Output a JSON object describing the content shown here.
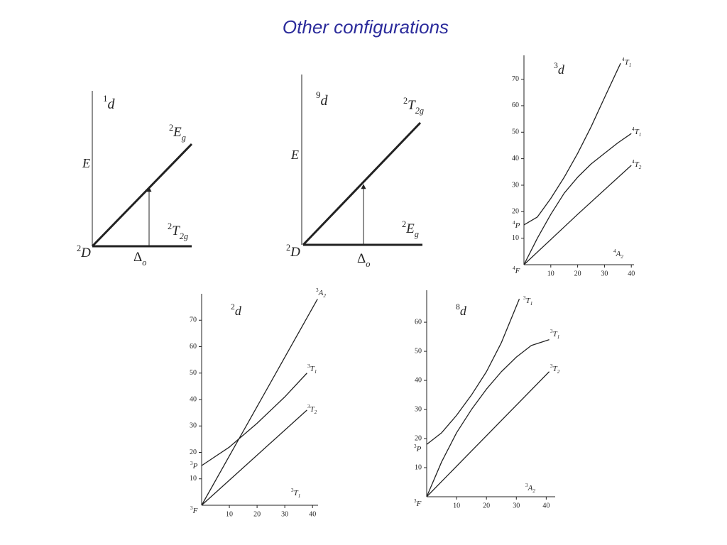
{
  "title": "Other configurations",
  "panels": [
    {
      "name": {
        "main": "d",
        "sup": "1"
      },
      "axis_label": {
        "main": "E"
      },
      "labels": [
        {
          "sup": "2",
          "main": "E",
          "sub": "g"
        },
        {
          "sup": "2",
          "main": "T",
          "sub": "2g"
        },
        {
          "sup": "2",
          "main": "D"
        },
        {
          "main": "Δ",
          "sub": "o"
        }
      ]
    },
    {
      "name": {
        "main": "d",
        "sup": "9"
      },
      "axis_label": {
        "main": "E"
      },
      "labels": [
        {
          "sup": "2",
          "main": "T",
          "sub": "2g"
        },
        {
          "sup": "2",
          "main": "E",
          "sub": "g"
        },
        {
          "sup": "2",
          "main": "D"
        },
        {
          "main": "Δ",
          "sub": "o"
        }
      ]
    }
  ],
  "plots": [
    {
      "name": {
        "main": "d",
        "sup": "3"
      },
      "xlim": [
        0,
        41
      ],
      "ylim": [
        0,
        79
      ],
      "xticks": [
        10,
        20,
        30,
        40
      ],
      "yticks": [
        10,
        20,
        30,
        40,
        50,
        60,
        70
      ],
      "curves": [
        {
          "x": [
            0,
            5,
            10,
            15,
            20,
            25,
            30,
            36
          ],
          "y": [
            15,
            18,
            25,
            33,
            42,
            52,
            63,
            76
          ]
        },
        {
          "x": [
            0,
            5,
            10,
            15,
            20,
            25,
            30,
            35,
            40
          ],
          "y": [
            0,
            10,
            19,
            27,
            33,
            38,
            42,
            46,
            49.5
          ]
        },
        {
          "x": [
            0,
            20,
            40
          ],
          "y": [
            0,
            19,
            37.5
          ]
        }
      ],
      "labels": [
        {
          "sup": "4",
          "main": "T",
          "sub": "1"
        },
        {
          "sup": "4",
          "main": "T",
          "sub": "1"
        },
        {
          "sup": "4",
          "main": "T",
          "sub": "2"
        },
        {
          "sup": "4",
          "main": "P"
        },
        {
          "sup": "4",
          "main": "F"
        },
        {
          "sup": "4",
          "main": "A",
          "sub": "2"
        }
      ]
    },
    {
      "name": {
        "main": "d",
        "sup": "2"
      },
      "xlim": [
        0,
        42
      ],
      "ylim": [
        0,
        80
      ],
      "xticks": [
        10,
        20,
        30,
        40
      ],
      "yticks": [
        10,
        20,
        30,
        40,
        50,
        60,
        70
      ],
      "curves": [
        {
          "x": [
            0,
            41.8
          ],
          "y": [
            0,
            78
          ]
        },
        {
          "x": [
            0,
            10,
            20,
            30,
            38
          ],
          "y": [
            15,
            22,
            31,
            41,
            50
          ]
        },
        {
          "x": [
            0,
            38
          ],
          "y": [
            0,
            36
          ]
        }
      ],
      "labels": [
        {
          "sup": "3",
          "main": "A",
          "sub": "2"
        },
        {
          "sup": "3",
          "main": "T",
          "sub": "1"
        },
        {
          "sup": "3",
          "main": "T",
          "sub": "2"
        },
        {
          "sup": "3",
          "main": "P"
        },
        {
          "sup": "3",
          "main": "F"
        },
        {
          "sup": "3",
          "main": "T",
          "sub": "1"
        }
      ]
    },
    {
      "name": {
        "main": "d",
        "sup": "8"
      },
      "xlim": [
        0,
        43
      ],
      "ylim": [
        0,
        71
      ],
      "xticks": [
        10,
        20,
        30,
        40
      ],
      "yticks": [
        10,
        20,
        30,
        40,
        50,
        60
      ],
      "curves": [
        {
          "x": [
            0,
            5,
            10,
            15,
            20,
            25,
            31
          ],
          "y": [
            18,
            22,
            28,
            35,
            43,
            53,
            68
          ]
        },
        {
          "x": [
            0,
            5,
            10,
            15,
            20,
            25,
            30,
            35,
            41
          ],
          "y": [
            0,
            12,
            22,
            30,
            37,
            43,
            48,
            52,
            54
          ]
        },
        {
          "x": [
            0,
            41
          ],
          "y": [
            0,
            43
          ]
        }
      ],
      "labels": [
        {
          "sup": "3",
          "main": "T",
          "sub": "1"
        },
        {
          "sup": "3",
          "main": "T",
          "sub": "1"
        },
        {
          "sup": "3",
          "main": "T",
          "sub": "2"
        },
        {
          "sup": "3",
          "main": "P"
        },
        {
          "sup": "3",
          "main": "F"
        },
        {
          "sup": "3",
          "main": "A",
          "sub": "2"
        }
      ]
    }
  ]
}
